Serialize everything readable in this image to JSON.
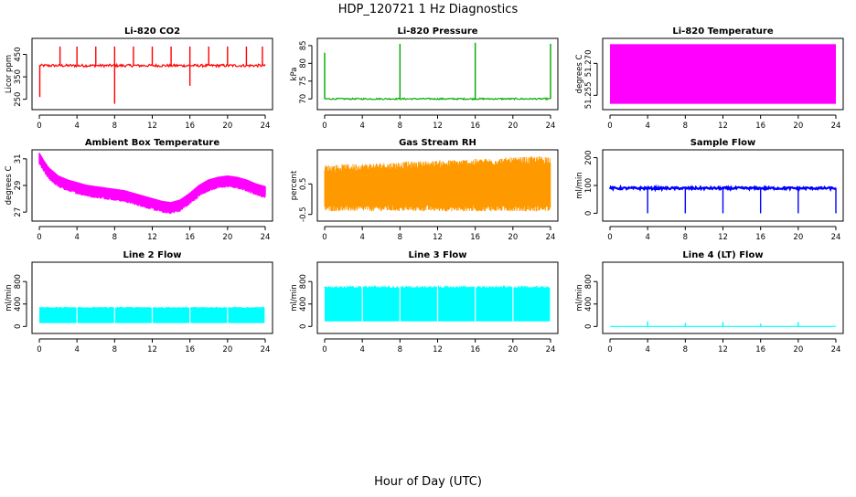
{
  "figure": {
    "title": "HDP_120721  1 Hz Diagnostics",
    "xlabel": "Hour of Day (UTC)"
  },
  "chart_data": [
    {
      "type": "line",
      "title": "Li-820 CO2",
      "ylabel": "Licor ppm",
      "color": "#ff0000",
      "xlim": [
        0,
        24
      ],
      "ylim": [
        220,
        505
      ],
      "xticks": [
        "0",
        "4",
        "8",
        "12",
        "16",
        "20",
        "24"
      ],
      "yticks": [
        "250",
        "350",
        "450"
      ],
      "baseline": 400,
      "noise": 6,
      "spikes": [
        {
          "x": 0.05,
          "y": 260
        },
        {
          "x": 2.2,
          "y": 485
        },
        {
          "x": 4.0,
          "y": 485
        },
        {
          "x": 6.0,
          "y": 485
        },
        {
          "x": 8.0,
          "y": 485
        },
        {
          "x": 8.0,
          "y": 230
        },
        {
          "x": 10.0,
          "y": 485
        },
        {
          "x": 12.0,
          "y": 485
        },
        {
          "x": 14.0,
          "y": 485
        },
        {
          "x": 16.0,
          "y": 485
        },
        {
          "x": 16.0,
          "y": 310
        },
        {
          "x": 18.0,
          "y": 485
        },
        {
          "x": 20.0,
          "y": 485
        },
        {
          "x": 22.0,
          "y": 485
        },
        {
          "x": 23.7,
          "y": 485
        }
      ]
    },
    {
      "type": "line",
      "title": "Li-820 Pressure",
      "ylabel": "kPa",
      "color": "#00aa00",
      "xlim": [
        0,
        24
      ],
      "ylim": [
        68,
        86
      ],
      "xticks": [
        "0",
        "4",
        "8",
        "12",
        "16",
        "20",
        "24"
      ],
      "yticks": [
        "70",
        "75",
        "80",
        "85"
      ],
      "baseline": 70,
      "noise": 0.2,
      "spikes": [
        {
          "x": 0.0,
          "y": 83
        },
        {
          "x": 8.0,
          "y": 85.5
        },
        {
          "x": 16.0,
          "y": 85.8
        },
        {
          "x": 24.0,
          "y": 85.5
        }
      ]
    },
    {
      "type": "area",
      "title": "Li-820 Temperature",
      "ylabel": "degrees C",
      "color": "#ff00ff",
      "xlim": [
        0,
        24
      ],
      "ylim": [
        51.25,
        51.28
      ],
      "xticks": [
        "0",
        "4",
        "8",
        "12",
        "16",
        "20",
        "24"
      ],
      "yticks": [
        "51.255",
        "51.270"
      ],
      "band": [
        51.251,
        51.279
      ]
    },
    {
      "type": "line",
      "title": "Ambient Box Temperature",
      "ylabel": "degrees C",
      "color": "#ff00ff",
      "xlim": [
        0,
        24
      ],
      "ylim": [
        26.6,
        31.4
      ],
      "xticks": [
        "0",
        "4",
        "8",
        "12",
        "16",
        "20",
        "24"
      ],
      "yticks": [
        "27",
        "29",
        "31"
      ],
      "x": [
        0,
        0.5,
        1,
        2,
        3,
        4,
        5,
        6,
        7,
        8,
        9,
        10,
        11,
        12,
        13,
        14,
        15,
        16,
        17,
        18,
        19,
        20,
        21,
        22,
        23,
        24
      ],
      "y": [
        31.0,
        30.4,
        29.9,
        29.3,
        29.0,
        28.8,
        28.6,
        28.5,
        28.4,
        28.3,
        28.2,
        28.0,
        27.8,
        27.6,
        27.4,
        27.3,
        27.5,
        28.0,
        28.6,
        29.0,
        29.2,
        29.3,
        29.2,
        29.0,
        28.7,
        28.5
      ],
      "noise": 0.45
    },
    {
      "type": "line",
      "title": "Gas Stream RH",
      "ylabel": "percent",
      "color": "#ff9900",
      "xlim": [
        0,
        24
      ],
      "ylim": [
        -0.6,
        1.5
      ],
      "xticks": [
        "0",
        "4",
        "8",
        "12",
        "16",
        "20",
        "24"
      ],
      "yticks": [
        "-0.5",
        "0.5"
      ],
      "band_low": [
        -0.3,
        -0.25
      ],
      "band_high": [
        1.0,
        1.3
      ]
    },
    {
      "type": "line",
      "title": "Sample Flow",
      "ylabel": "ml/min",
      "color": "#0000ff",
      "xlim": [
        0,
        24
      ],
      "ylim": [
        -15,
        215
      ],
      "xticks": [
        "0",
        "4",
        "8",
        "12",
        "16",
        "20",
        "24"
      ],
      "yticks": [
        "0",
        "100",
        "200"
      ],
      "baseline": 90,
      "noise": 4,
      "dips": [
        {
          "x": 4,
          "y": 0
        },
        {
          "x": 8,
          "y": 0
        },
        {
          "x": 12,
          "y": 0
        },
        {
          "x": 16,
          "y": 0
        },
        {
          "x": 20,
          "y": 0
        },
        {
          "x": 24,
          "y": 0
        }
      ]
    },
    {
      "type": "area",
      "title": "Line 2 Flow",
      "ylabel": "ml/min",
      "color": "#00ffff",
      "xlim": [
        0,
        24
      ],
      "ylim": [
        -60,
        1080
      ],
      "xticks": [
        "0",
        "4",
        "8",
        "12",
        "16",
        "20",
        "24"
      ],
      "yticks": [
        "0",
        "400",
        "800"
      ],
      "band": [
        60,
        330
      ],
      "gaps": [
        4,
        8,
        12,
        16,
        20
      ]
    },
    {
      "type": "area",
      "title": "Line 3 Flow",
      "ylabel": "ml/min",
      "color": "#00ffff",
      "xlim": [
        0,
        24
      ],
      "ylim": [
        -60,
        1080
      ],
      "xticks": [
        "0",
        "4",
        "8",
        "12",
        "16",
        "20",
        "24"
      ],
      "yticks": [
        "0",
        "400",
        "800"
      ],
      "band": [
        90,
        690
      ],
      "gaps": [
        4,
        8,
        12,
        16,
        20
      ]
    },
    {
      "type": "line",
      "title": "Line 4 (LT) Flow",
      "ylabel": "ml/min",
      "color": "#00ffff",
      "xlim": [
        0,
        24
      ],
      "ylim": [
        -60,
        1080
      ],
      "xticks": [
        "0",
        "4",
        "8",
        "12",
        "16",
        "20",
        "24"
      ],
      "yticks": [
        "0",
        "400",
        "800"
      ],
      "baseline": 0,
      "spikes": [
        {
          "x": 4,
          "y": 90
        },
        {
          "x": 8,
          "y": 60
        },
        {
          "x": 12,
          "y": 80
        },
        {
          "x": 16,
          "y": 50
        },
        {
          "x": 20,
          "y": 80
        }
      ]
    }
  ]
}
